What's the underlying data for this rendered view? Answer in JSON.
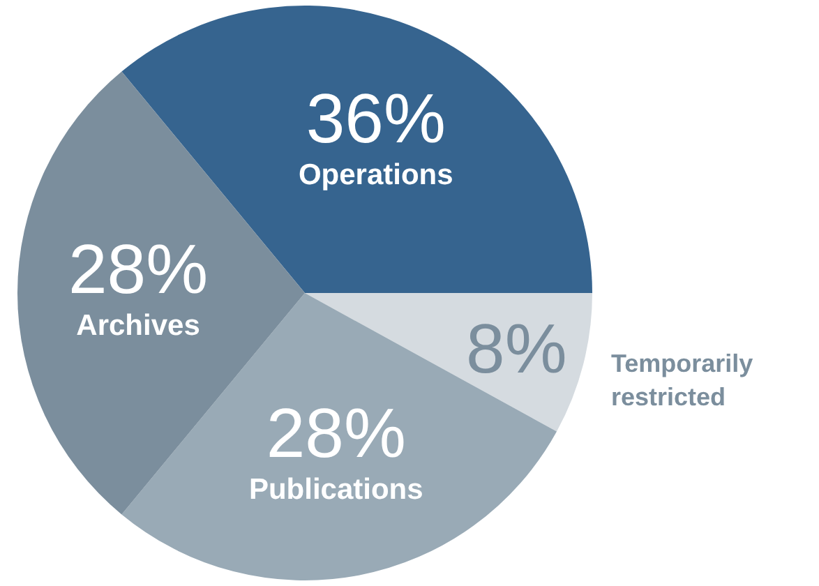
{
  "chart_data": {
    "type": "pie",
    "categories": [
      "Operations",
      "Temporarily restricted",
      "Publications",
      "Archives"
    ],
    "values": [
      36,
      8,
      28,
      28
    ],
    "value_labels": [
      "36%",
      "8%",
      "28%",
      "28%"
    ],
    "colors": [
      "#36648f",
      "#d5dbe0",
      "#99aab6",
      "#7b8e9d"
    ],
    "legend": false
  }
}
